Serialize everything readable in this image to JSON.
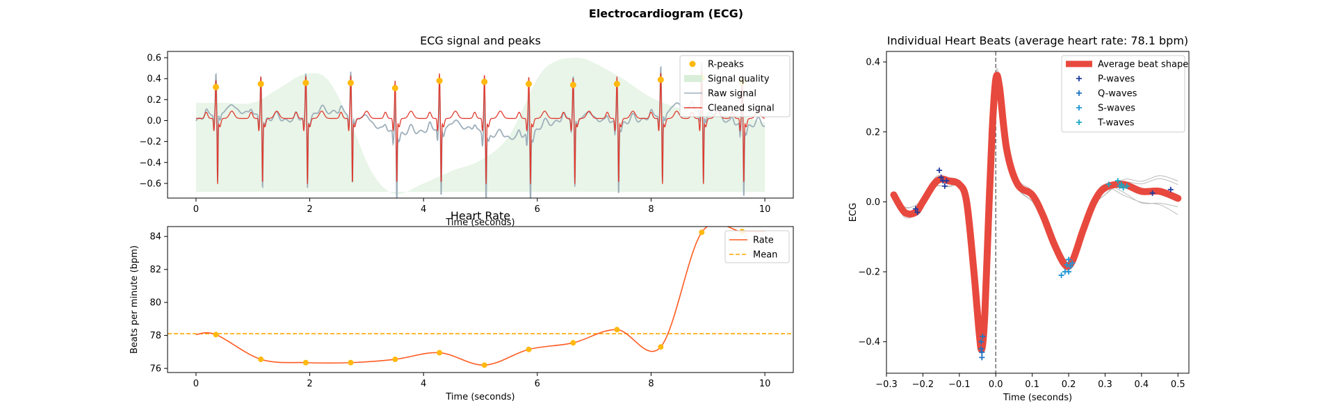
{
  "figure": {
    "title": "Electrocardiogram (ECG)"
  },
  "chart_data": [
    {
      "id": "ecg",
      "type": "line",
      "title": "ECG signal and peaks",
      "xlabel": "Time (seconds)",
      "ylabel": "",
      "xlim": [
        -0.5,
        10.5
      ],
      "ylim": [
        -0.74,
        0.66
      ],
      "xticks": [
        0,
        2,
        4,
        6,
        8,
        10
      ],
      "yticks": [
        -0.6,
        -0.4,
        -0.2,
        0.0,
        0.2,
        0.4,
        0.6
      ],
      "ytick_labels": [
        "−0.6",
        "−0.4",
        "−0.2",
        "0.0",
        "0.2",
        "0.4",
        "0.6"
      ],
      "legend": "top-right",
      "r_peaks_t": [
        0.35,
        1.14,
        1.93,
        2.72,
        3.5,
        4.28,
        5.07,
        5.85,
        6.63,
        7.4,
        8.17,
        8.89,
        9.6
      ],
      "r_peaks_y": [
        0.32,
        0.35,
        0.36,
        0.36,
        0.31,
        0.38,
        0.37,
        0.35,
        0.34,
        0.35,
        0.39,
        0.41,
        0.37
      ],
      "quality_x": [
        0,
        0.5,
        1.0,
        1.5,
        1.9,
        2.3,
        2.7,
        3.1,
        3.5,
        4.0,
        4.5,
        5.0,
        5.5,
        6.0,
        6.3,
        6.7,
        7.0,
        7.5,
        8.0,
        8.5,
        9.0,
        9.5,
        10.0
      ],
      "quality_y": [
        0.17,
        0.17,
        0.17,
        0.32,
        0.44,
        0.4,
        0.0,
        -0.5,
        -0.7,
        -0.6,
        -0.48,
        -0.38,
        -0.15,
        0.4,
        0.56,
        0.6,
        0.55,
        0.4,
        0.22,
        0.12,
        0.08,
        0.05,
        -0.02
      ],
      "quality_base": -0.68,
      "series": [
        {
          "name": "R-peaks",
          "color": "#ffb90f"
        },
        {
          "name": "Signal quality",
          "color": "#d8eed8"
        },
        {
          "name": "Raw signal",
          "color": "#9eafbb"
        },
        {
          "name": "Cleaned signal",
          "color": "#e03a2e"
        }
      ]
    },
    {
      "id": "rate",
      "type": "line",
      "title": "Heart Rate",
      "xlabel": "Time (seconds)",
      "ylabel": "Beats per minute (bpm)",
      "xlim": [
        -0.5,
        10.5
      ],
      "ylim": [
        75.75,
        84.6
      ],
      "xticks": [
        0,
        2,
        4,
        6,
        8,
        10
      ],
      "yticks": [
        76,
        78,
        80,
        82,
        84
      ],
      "legend": "top-right",
      "points_x": [
        0.35,
        1.14,
        1.93,
        2.72,
        3.5,
        4.28,
        5.07,
        5.85,
        6.63,
        7.4,
        8.17,
        8.89,
        9.6
      ],
      "points_y": [
        78.05,
        76.55,
        76.35,
        76.35,
        76.55,
        76.95,
        76.2,
        77.15,
        77.55,
        78.35,
        77.3,
        84.25,
        84.3
      ],
      "mean": 78.1,
      "series": [
        {
          "name": "Rate",
          "color": "#ff5a1f"
        },
        {
          "name": "Mean",
          "color": "#ffa500"
        }
      ]
    },
    {
      "id": "beats",
      "type": "line",
      "title": "Individual Heart Beats (average heart rate: 78.1 bpm)",
      "xlabel": "Time (seconds)",
      "ylabel": "ECG",
      "xlim": [
        -0.3,
        0.53
      ],
      "ylim": [
        -0.49,
        0.43
      ],
      "xticks": [
        -0.3,
        -0.2,
        -0.1,
        0.0,
        0.1,
        0.2,
        0.3,
        0.4,
        0.5
      ],
      "xtick_labels": [
        "−0.3",
        "−0.2",
        "−0.1",
        "0.0",
        "0.1",
        "0.2",
        "0.3",
        "0.4",
        "0.5"
      ],
      "yticks": [
        -0.4,
        -0.2,
        0.0,
        0.2,
        0.4
      ],
      "ytick_labels": [
        "−0.4",
        "−0.2",
        "0.0",
        "0.2",
        "0.4"
      ],
      "legend": "top-right",
      "avg_x": [
        -0.28,
        -0.25,
        -0.22,
        -0.2,
        -0.17,
        -0.15,
        -0.13,
        -0.1,
        -0.08,
        -0.06,
        -0.045,
        -0.038,
        -0.03,
        -0.02,
        -0.01,
        0.0,
        0.01,
        0.03,
        0.06,
        0.1,
        0.13,
        0.16,
        0.19,
        0.21,
        0.24,
        0.27,
        0.3,
        0.35,
        0.4,
        0.45,
        0.5
      ],
      "avg_y": [
        0.02,
        -0.03,
        -0.03,
        0.0,
        0.05,
        0.065,
        0.06,
        0.05,
        0.0,
        -0.2,
        -0.38,
        -0.42,
        -0.32,
        -0.05,
        0.2,
        0.35,
        0.33,
        0.15,
        0.05,
        0.02,
        -0.04,
        -0.12,
        -0.18,
        -0.17,
        -0.08,
        0.0,
        0.04,
        0.05,
        0.03,
        0.03,
        0.01
      ],
      "p_waves": [
        [
          -0.22,
          -0.02
        ],
        [
          -0.215,
          -0.03
        ],
        [
          -0.155,
          0.09
        ],
        [
          -0.15,
          0.07
        ],
        [
          -0.145,
          0.06
        ],
        [
          -0.14,
          0.045
        ],
        [
          -0.135,
          0.06
        ],
        [
          0.43,
          0.025
        ],
        [
          0.48,
          0.035
        ]
      ],
      "q_waves": [
        [
          -0.04,
          -0.4
        ],
        [
          -0.04,
          -0.42
        ],
        [
          -0.038,
          -0.43
        ],
        [
          -0.038,
          -0.445
        ],
        [
          -0.036,
          -0.385
        ]
      ],
      "s_waves": [
        [
          0.18,
          -0.21
        ],
        [
          0.19,
          -0.2
        ],
        [
          0.195,
          -0.18
        ],
        [
          0.2,
          -0.165
        ],
        [
          0.2,
          -0.2
        ],
        [
          0.205,
          -0.185
        ],
        [
          0.21,
          -0.175
        ]
      ],
      "t_waves": [
        [
          0.31,
          0.05
        ],
        [
          0.335,
          0.06
        ],
        [
          0.34,
          0.045
        ],
        [
          0.345,
          0.05
        ],
        [
          0.35,
          0.04
        ],
        [
          0.36,
          0.045
        ]
      ],
      "series": [
        {
          "name": "Average beat shape",
          "color": "#e8493e"
        },
        {
          "name": "P-waves",
          "color": "#1f3c9e"
        },
        {
          "name": "Q-waves",
          "color": "#1f74c4"
        },
        {
          "name": "S-waves",
          "color": "#1f96d6"
        },
        {
          "name": "T-waves",
          "color": "#18a8c4"
        }
      ]
    }
  ]
}
